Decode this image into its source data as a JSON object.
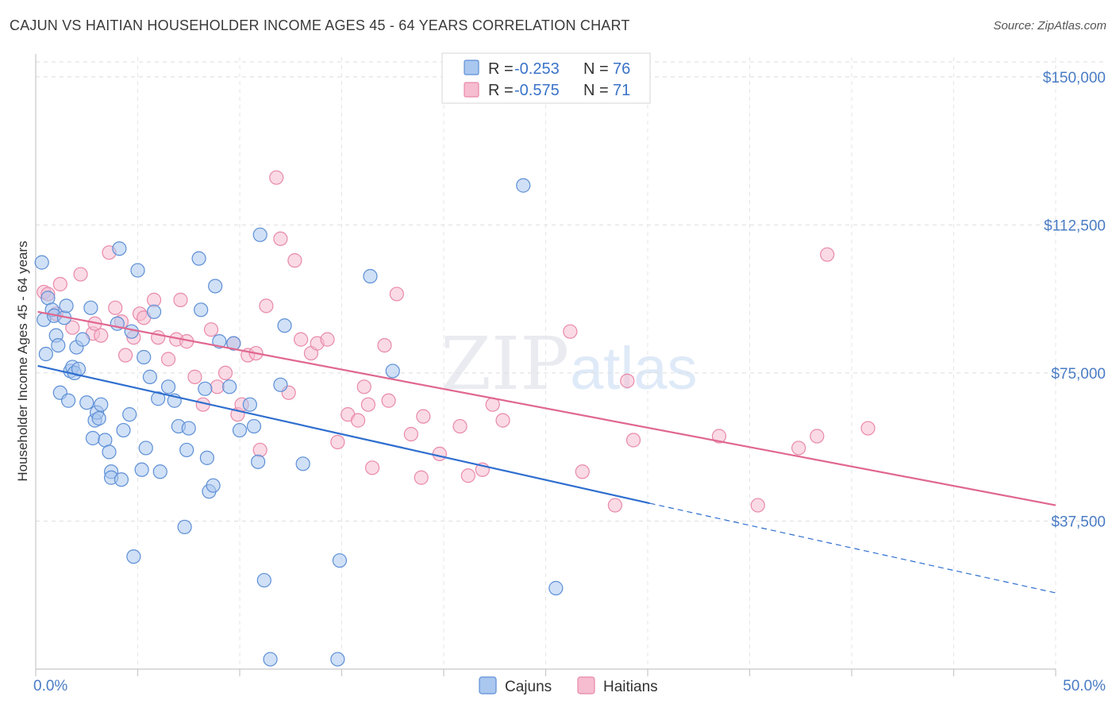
{
  "title": "CAJUN VS HAITIAN HOUSEHOLDER INCOME AGES 45 - 64 YEARS CORRELATION CHART",
  "source": "Source: ZipAtlas.com",
  "watermark": {
    "zip": "ZIP",
    "atlas": "atlas"
  },
  "legend_top": [
    {
      "r_label": "R =",
      "r_value": "-0.253",
      "n_label": "N =",
      "n_value": "76"
    },
    {
      "r_label": "R =",
      "r_value": "-0.575",
      "n_label": "N =",
      "n_value": "71"
    }
  ],
  "legend_bottom": [
    "Cajuns",
    "Haitians"
  ],
  "chart_data": {
    "type": "scatter",
    "title": "CAJUN VS HAITIAN HOUSEHOLDER INCOME AGES 45 - 64 YEARS CORRELATION CHART",
    "xlabel": "",
    "ylabel": "Householder Income Ages 45 - 64 years",
    "xlim": [
      0,
      50
    ],
    "ylim": [
      0,
      157000
    ],
    "x_tick_labels": [
      "0.0%",
      "50.0%"
    ],
    "y_ticks": [
      37500,
      75000,
      112500,
      150000
    ],
    "y_tick_labels": [
      "$37,500",
      "$75,000",
      "$112,500",
      "$150,000"
    ],
    "grid": true,
    "legend_placement": "top-center",
    "colors": {
      "cajuns_fill": "#a9c7ef",
      "cajuns_stroke": "#5d8fd6",
      "cajuns_line": "#2f6fcf",
      "haitians_fill": "#f6bcd0",
      "haitians_stroke": "#e889aa",
      "haitians_line": "#e0678f"
    },
    "series": [
      {
        "name": "Cajuns",
        "trend": {
          "x0": 0.1,
          "y0": 76800,
          "x1": 30.1,
          "y1": 42000,
          "dash_to_x": 50.0,
          "dash_to_y": 19300
        },
        "points": [
          [
            0.3,
            103000
          ],
          [
            0.4,
            88500
          ],
          [
            0.5,
            79800
          ],
          [
            0.6,
            94000
          ],
          [
            0.8,
            91000
          ],
          [
            0.9,
            89500
          ],
          [
            1.0,
            84500
          ],
          [
            1.1,
            82000
          ],
          [
            1.2,
            70000
          ],
          [
            1.4,
            89000
          ],
          [
            1.5,
            92000
          ],
          [
            1.6,
            68000
          ],
          [
            1.7,
            75500
          ],
          [
            1.8,
            76500
          ],
          [
            1.9,
            75000
          ],
          [
            2.0,
            81500
          ],
          [
            2.1,
            76000
          ],
          [
            2.3,
            83500
          ],
          [
            2.5,
            67500
          ],
          [
            2.7,
            91500
          ],
          [
            2.8,
            58500
          ],
          [
            2.9,
            63000
          ],
          [
            3.0,
            65000
          ],
          [
            3.1,
            63500
          ],
          [
            3.2,
            67000
          ],
          [
            3.4,
            58000
          ],
          [
            3.6,
            55000
          ],
          [
            3.7,
            50000
          ],
          [
            3.7,
            48500
          ],
          [
            4.0,
            87500
          ],
          [
            4.1,
            106500
          ],
          [
            4.2,
            48000
          ],
          [
            4.3,
            60500
          ],
          [
            4.6,
            64500
          ],
          [
            4.7,
            85500
          ],
          [
            4.8,
            28500
          ],
          [
            5.0,
            101000
          ],
          [
            5.2,
            50500
          ],
          [
            5.3,
            79000
          ],
          [
            5.4,
            56000
          ],
          [
            5.6,
            74000
          ],
          [
            5.8,
            90500
          ],
          [
            6.0,
            68500
          ],
          [
            6.1,
            50000
          ],
          [
            6.5,
            71500
          ],
          [
            6.8,
            68000
          ],
          [
            7.0,
            61500
          ],
          [
            7.3,
            36000
          ],
          [
            7.4,
            55500
          ],
          [
            7.5,
            61000
          ],
          [
            8.0,
            104000
          ],
          [
            8.1,
            91000
          ],
          [
            8.3,
            71000
          ],
          [
            8.4,
            53500
          ],
          [
            8.5,
            45000
          ],
          [
            8.7,
            46500
          ],
          [
            8.8,
            97000
          ],
          [
            9.0,
            83000
          ],
          [
            9.5,
            71500
          ],
          [
            9.7,
            82500
          ],
          [
            10.0,
            60500
          ],
          [
            10.5,
            67000
          ],
          [
            10.7,
            61500
          ],
          [
            10.9,
            52500
          ],
          [
            11.0,
            110000
          ],
          [
            11.2,
            22500
          ],
          [
            11.5,
            2500
          ],
          [
            12.0,
            72000
          ],
          [
            12.2,
            87000
          ],
          [
            13.1,
            52000
          ],
          [
            14.8,
            2500
          ],
          [
            14.9,
            27500
          ],
          [
            16.4,
            99500
          ],
          [
            17.5,
            75500
          ],
          [
            23.9,
            122500
          ],
          [
            25.5,
            20500
          ]
        ]
      },
      {
        "name": "Haitians",
        "trend": {
          "x0": 0.1,
          "y0": 90500,
          "x1": 50.0,
          "y1": 41500
        },
        "points": [
          [
            0.4,
            95500
          ],
          [
            0.6,
            95000
          ],
          [
            1.0,
            90000
          ],
          [
            1.2,
            97500
          ],
          [
            1.8,
            86500
          ],
          [
            2.2,
            100000
          ],
          [
            2.8,
            85000
          ],
          [
            2.9,
            87500
          ],
          [
            3.2,
            84500
          ],
          [
            3.6,
            105500
          ],
          [
            3.9,
            91500
          ],
          [
            4.2,
            88000
          ],
          [
            4.4,
            79500
          ],
          [
            4.8,
            84000
          ],
          [
            5.1,
            90000
          ],
          [
            5.3,
            89000
          ],
          [
            5.8,
            93500
          ],
          [
            6.0,
            84000
          ],
          [
            6.5,
            78500
          ],
          [
            6.9,
            83500
          ],
          [
            7.1,
            93500
          ],
          [
            7.4,
            83000
          ],
          [
            7.8,
            74000
          ],
          [
            8.2,
            67000
          ],
          [
            8.6,
            86000
          ],
          [
            8.9,
            71500
          ],
          [
            9.3,
            75000
          ],
          [
            9.7,
            82500
          ],
          [
            9.9,
            64500
          ],
          [
            10.1,
            67000
          ],
          [
            10.4,
            79500
          ],
          [
            10.8,
            80000
          ],
          [
            11.0,
            55500
          ],
          [
            11.3,
            92000
          ],
          [
            11.8,
            124500
          ],
          [
            12.0,
            109000
          ],
          [
            12.4,
            70000
          ],
          [
            12.7,
            103500
          ],
          [
            13.0,
            83500
          ],
          [
            13.5,
            80000
          ],
          [
            13.8,
            82500
          ],
          [
            14.3,
            83500
          ],
          [
            14.8,
            57500
          ],
          [
            15.3,
            64500
          ],
          [
            15.8,
            63000
          ],
          [
            16.1,
            71500
          ],
          [
            16.3,
            67000
          ],
          [
            16.5,
            51000
          ],
          [
            17.1,
            82000
          ],
          [
            17.3,
            68000
          ],
          [
            17.7,
            95000
          ],
          [
            18.4,
            59500
          ],
          [
            18.9,
            48500
          ],
          [
            19.0,
            64000
          ],
          [
            19.8,
            54500
          ],
          [
            20.8,
            61500
          ],
          [
            21.2,
            49000
          ],
          [
            21.9,
            50500
          ],
          [
            22.4,
            67000
          ],
          [
            22.9,
            63000
          ],
          [
            26.2,
            85500
          ],
          [
            26.8,
            50000
          ],
          [
            28.4,
            41500
          ],
          [
            29.0,
            73000
          ],
          [
            29.3,
            58000
          ],
          [
            33.5,
            59000
          ],
          [
            35.4,
            41500
          ],
          [
            37.4,
            56000
          ],
          [
            38.3,
            59000
          ],
          [
            38.8,
            105000
          ],
          [
            40.8,
            61000
          ]
        ]
      }
    ]
  }
}
